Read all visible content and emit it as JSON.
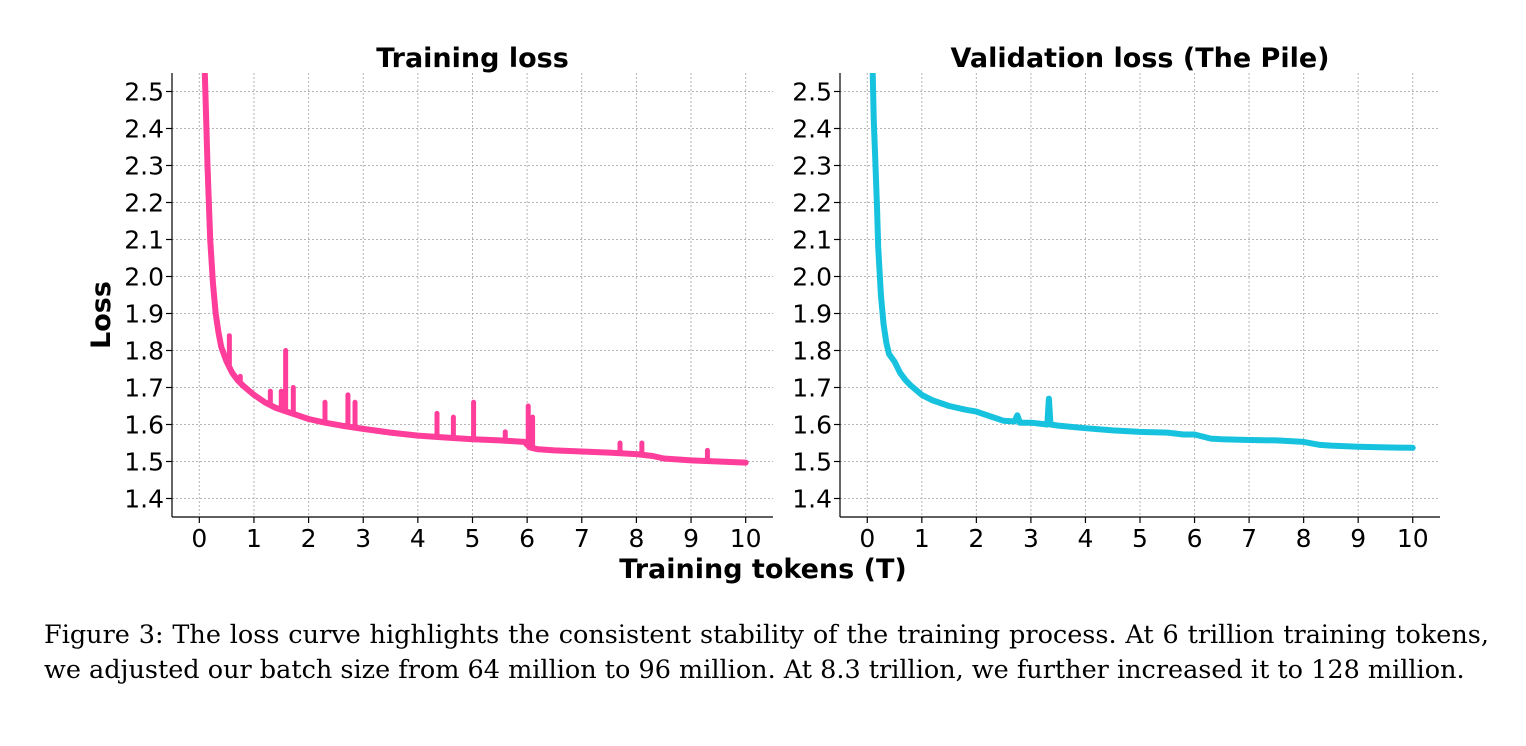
{
  "figure": {
    "xlabel": "Training tokens (T)",
    "ylabel": "Loss",
    "caption": "Figure 3: The loss curve highlights the consistent stability of the training process. At 6 trillion training tokens, we adjusted our batch size from 64 million to 96 million. At 8.3 trillion, we further increased it to 128 million."
  },
  "chart_data": [
    {
      "type": "line",
      "title": "Training loss",
      "xlabel": "Training tokens (T)",
      "ylabel": "Loss",
      "xlim": [
        -0.5,
        10.5
      ],
      "ylim": [
        1.35,
        2.55
      ],
      "xticks": [
        0,
        1,
        2,
        3,
        4,
        5,
        6,
        7,
        8,
        9,
        10
      ],
      "yticks": [
        1.4,
        1.5,
        1.6,
        1.7,
        1.8,
        1.9,
        2.0,
        2.1,
        2.2,
        2.3,
        2.4,
        2.5
      ],
      "grid": true,
      "color": "#ff3d9a",
      "series": [
        {
          "x": [
            0.1,
            0.12,
            0.15,
            0.2,
            0.25,
            0.3,
            0.35,
            0.4,
            0.5,
            0.6,
            0.7,
            0.8,
            1.0,
            1.2,
            1.4,
            1.6,
            1.8,
            2.0,
            2.3,
            2.6,
            3.0,
            3.5,
            4.0,
            4.5,
            5.0,
            5.5,
            5.95,
            6.05,
            6.2,
            6.5,
            7.0,
            7.5,
            8.0,
            8.3,
            8.5,
            9.0,
            9.5,
            10.0
          ],
          "y": [
            2.55,
            2.45,
            2.3,
            2.1,
            1.98,
            1.9,
            1.85,
            1.81,
            1.77,
            1.74,
            1.72,
            1.705,
            1.68,
            1.66,
            1.645,
            1.635,
            1.625,
            1.615,
            1.605,
            1.597,
            1.588,
            1.578,
            1.57,
            1.565,
            1.56,
            1.557,
            1.553,
            1.538,
            1.533,
            1.53,
            1.527,
            1.524,
            1.52,
            1.515,
            1.508,
            1.503,
            1.5,
            1.497
          ],
          "spikes": [
            {
              "x": 0.55,
              "y": 1.84
            },
            {
              "x": 0.75,
              "y": 1.73
            },
            {
              "x": 1.3,
              "y": 1.69
            },
            {
              "x": 1.5,
              "y": 1.69
            },
            {
              "x": 1.58,
              "y": 1.8
            },
            {
              "x": 1.72,
              "y": 1.7
            },
            {
              "x": 2.3,
              "y": 1.66
            },
            {
              "x": 2.72,
              "y": 1.68
            },
            {
              "x": 2.85,
              "y": 1.66
            },
            {
              "x": 4.35,
              "y": 1.63
            },
            {
              "x": 4.65,
              "y": 1.62
            },
            {
              "x": 5.02,
              "y": 1.66
            },
            {
              "x": 5.6,
              "y": 1.58
            },
            {
              "x": 6.02,
              "y": 1.65
            },
            {
              "x": 6.1,
              "y": 1.62
            },
            {
              "x": 7.7,
              "y": 1.55
            },
            {
              "x": 8.1,
              "y": 1.55
            },
            {
              "x": 9.3,
              "y": 1.53
            }
          ]
        }
      ]
    },
    {
      "type": "line",
      "title": "Validation loss (The Pile)",
      "xlabel": "Training tokens (T)",
      "xlim": [
        -0.5,
        10.5
      ],
      "ylim": [
        1.35,
        2.55
      ],
      "xticks": [
        0,
        1,
        2,
        3,
        4,
        5,
        6,
        7,
        8,
        9,
        10
      ],
      "yticks": [
        1.4,
        1.5,
        1.6,
        1.7,
        1.8,
        1.9,
        2.0,
        2.1,
        2.2,
        2.3,
        2.4,
        2.5
      ],
      "grid": true,
      "color": "#16c2de",
      "series": [
        {
          "x": [
            0.1,
            0.12,
            0.15,
            0.18,
            0.2,
            0.25,
            0.3,
            0.35,
            0.4,
            0.5,
            0.6,
            0.7,
            0.8,
            1.0,
            1.2,
            1.5,
            1.8,
            2.0,
            2.5,
            2.7,
            2.75,
            2.8,
            3.0,
            3.3,
            3.33,
            3.36,
            3.5,
            4.0,
            4.5,
            5.0,
            5.5,
            5.8,
            6.0,
            6.3,
            6.5,
            7.0,
            7.5,
            8.0,
            8.3,
            8.5,
            9.0,
            9.5,
            10.0
          ],
          "y": [
            2.55,
            2.42,
            2.3,
            2.18,
            2.08,
            1.95,
            1.87,
            1.82,
            1.79,
            1.77,
            1.74,
            1.72,
            1.705,
            1.68,
            1.665,
            1.65,
            1.64,
            1.635,
            1.61,
            1.608,
            1.625,
            1.605,
            1.605,
            1.6,
            1.67,
            1.6,
            1.597,
            1.59,
            1.584,
            1.58,
            1.578,
            1.573,
            1.573,
            1.562,
            1.56,
            1.558,
            1.557,
            1.553,
            1.545,
            1.543,
            1.54,
            1.538,
            1.537
          ]
        }
      ]
    }
  ]
}
